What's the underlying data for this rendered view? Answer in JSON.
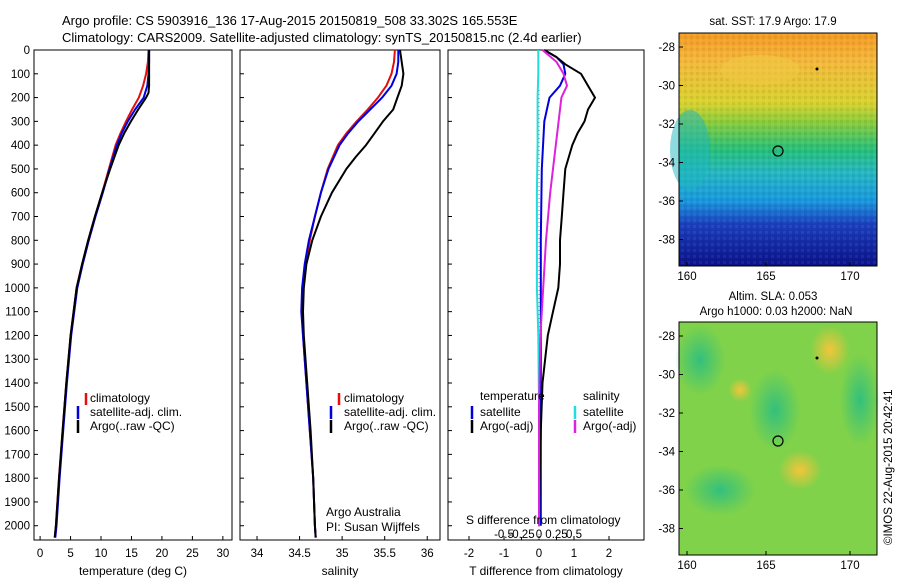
{
  "header": {
    "line1": "Argo profile: CS 5903916_136 17-Aug-2015 20150819_508 33.302S 165.553E",
    "line2": "Climatology: CARS2009. Satellite-adjusted climatology: synTS_20150815.nc (2.4d earlier)"
  },
  "colors": {
    "climatology": "#e01010",
    "satellite": "#0000dd",
    "argo": "#000000",
    "sal_satellite": "#22dddd",
    "sal_argo": "#dd22dd"
  },
  "chart_data": [
    {
      "type": "line",
      "xlabel": "temperature (deg C)",
      "ylabel": "",
      "xlim": [
        -1,
        31.5
      ],
      "ylim": [
        2060,
        0
      ],
      "x_ticks": [
        0,
        5,
        10,
        15,
        20,
        25,
        30
      ],
      "y_ticks": [
        0,
        100,
        200,
        300,
        400,
        500,
        600,
        700,
        800,
        900,
        1000,
        1100,
        1200,
        1300,
        1400,
        1500,
        1600,
        1700,
        1800,
        1900,
        2000
      ],
      "series": [
        {
          "name": "climatology",
          "color": "#e01010",
          "depth": [
            0,
            50,
            100,
            150,
            200,
            250,
            300,
            350,
            400,
            500,
            600,
            700,
            800,
            900,
            1000,
            1200,
            1400,
            1600,
            1800,
            2000,
            2050
          ],
          "values": [
            17.8,
            17.7,
            17.4,
            16.9,
            16.2,
            15.1,
            14.1,
            13.2,
            12.4,
            11.3,
            10.2,
            9.0,
            7.9,
            6.9,
            6.0,
            5.0,
            4.3,
            3.7,
            3.1,
            2.6,
            2.4
          ]
        },
        {
          "name": "satellite-adj. clim.",
          "color": "#0000dd",
          "depth": [
            0,
            50,
            100,
            150,
            200,
            250,
            300,
            350,
            400,
            500,
            600,
            700,
            800,
            900,
            1000,
            1200,
            1400,
            1600,
            1800,
            2000,
            2050
          ],
          "values": [
            17.9,
            17.9,
            17.8,
            17.6,
            17.0,
            15.6,
            14.4,
            13.4,
            12.6,
            11.4,
            10.3,
            9.1,
            8.0,
            7.0,
            6.1,
            5.1,
            4.4,
            3.8,
            3.2,
            2.7,
            2.5
          ]
        },
        {
          "name": "Argo(..raw -QC)",
          "color": "#000000",
          "depth": [
            0,
            50,
            100,
            150,
            180,
            200,
            250,
            300,
            350,
            400,
            500,
            600,
            700,
            800,
            900,
            1000,
            1200,
            1400,
            1600,
            1800,
            2000,
            2050
          ],
          "values": [
            17.9,
            17.9,
            17.9,
            17.9,
            17.8,
            17.4,
            16.1,
            14.9,
            13.8,
            12.9,
            11.5,
            10.2,
            9.0,
            7.9,
            6.9,
            6.0,
            5.0,
            4.3,
            3.7,
            3.1,
            2.6,
            2.4
          ]
        }
      ]
    },
    {
      "type": "line",
      "xlabel": "salinity",
      "xlim": [
        33.8,
        36.15
      ],
      "ylim": [
        2060,
        0
      ],
      "x_ticks": [
        34,
        34.5,
        35,
        35.5,
        36
      ],
      "x_tick_labels": [
        "34",
        "34.5",
        "35",
        "35.5",
        "36"
      ],
      "series": [
        {
          "name": "climatology",
          "color": "#e01010",
          "depth": [
            0,
            50,
            100,
            150,
            200,
            250,
            300,
            350,
            400,
            500,
            600,
            700,
            800,
            900,
            1000,
            1100,
            1200,
            1400,
            1600,
            1800,
            2000,
            2050
          ],
          "values": [
            35.62,
            35.61,
            35.58,
            35.52,
            35.42,
            35.3,
            35.17,
            35.05,
            34.95,
            34.83,
            34.75,
            34.68,
            34.62,
            34.57,
            34.54,
            34.53,
            34.54,
            34.58,
            34.62,
            34.66,
            34.68,
            34.69
          ]
        },
        {
          "name": "satellite-adj. clim.",
          "color": "#0000dd",
          "depth": [
            0,
            50,
            100,
            150,
            200,
            250,
            300,
            350,
            400,
            500,
            600,
            700,
            800,
            900,
            1000,
            1100,
            1200,
            1400,
            1600,
            1800,
            2000,
            2050
          ],
          "values": [
            35.66,
            35.66,
            35.64,
            35.58,
            35.47,
            35.33,
            35.19,
            35.07,
            34.97,
            34.84,
            34.75,
            34.68,
            34.61,
            34.56,
            34.53,
            34.52,
            34.54,
            34.58,
            34.62,
            34.66,
            34.68,
            34.69
          ]
        },
        {
          "name": "Argo(..raw -QC)",
          "color": "#000000",
          "depth": [
            0,
            50,
            100,
            150,
            200,
            250,
            300,
            350,
            400,
            450,
            500,
            600,
            700,
            800,
            900,
            1000,
            1100,
            1200,
            1400,
            1600,
            1800,
            2000,
            2050
          ],
          "values": [
            35.68,
            35.7,
            35.72,
            35.7,
            35.65,
            35.6,
            35.48,
            35.38,
            35.28,
            35.16,
            35.05,
            34.88,
            34.75,
            34.65,
            34.58,
            34.55,
            34.54,
            34.55,
            34.59,
            34.63,
            34.66,
            34.68,
            34.69
          ]
        }
      ],
      "annotations": [
        "Argo Australia",
        "PI: Susan Wijffels"
      ]
    },
    {
      "type": "line",
      "xlabel": "T difference from climatology",
      "title": "S difference from climatology",
      "xlim": [
        -2.6,
        3.0
      ],
      "ylim": [
        2060,
        0
      ],
      "x_ticks": [
        -2,
        -1,
        0,
        1,
        2
      ],
      "x_tick_labels": [
        "-2",
        "-1",
        "0",
        "1",
        "2"
      ],
      "s_ticks": [
        -0.5,
        -0.25,
        0,
        0.25,
        0.5
      ],
      "s_tick_labels": [
        "-0.5",
        "-0.25",
        "0",
        "0.25",
        "0.5"
      ],
      "series": [
        {
          "name": "satellite",
          "group": "temperature",
          "color": "#0000dd",
          "depth": [
            0,
            30,
            60,
            100,
            150,
            200,
            300,
            500,
            800,
            1000,
            1200,
            1500,
            2000
          ],
          "values": [
            0.15,
            0.5,
            0.7,
            0.75,
            0.6,
            0.3,
            0.15,
            0.08,
            0.05,
            0.05,
            0.05,
            0.05,
            0.05
          ]
        },
        {
          "name": "Argo(-adj)",
          "group": "temperature",
          "color": "#000000",
          "depth": [
            0,
            30,
            60,
            100,
            150,
            200,
            250,
            300,
            350,
            400,
            500,
            600,
            700,
            800,
            900,
            1000,
            1100,
            1200,
            1400,
            1600,
            1800,
            2000
          ],
          "values": [
            0.15,
            0.5,
            0.75,
            1.2,
            1.4,
            1.6,
            1.4,
            1.3,
            1.1,
            0.95,
            0.75,
            0.7,
            0.65,
            0.6,
            0.6,
            0.55,
            0.4,
            0.25,
            0.1,
            0.05,
            0.02,
            0.0
          ]
        },
        {
          "name": "satellite",
          "group": "salinity",
          "color": "#22dddd",
          "depth": [
            0,
            100,
            200,
            400,
            600,
            800,
            1000,
            1200,
            1500,
            1800,
            2000
          ],
          "values": [
            -0.01,
            -0.01,
            -0.02,
            -0.02,
            -0.03,
            -0.03,
            -0.03,
            -0.01,
            0.0,
            0.0,
            0.0
          ]
        },
        {
          "name": "Argo(-adj)",
          "group": "salinity",
          "color": "#dd22dd",
          "depth": [
            0,
            50,
            100,
            150,
            200,
            300,
            400,
            500,
            600,
            800,
            1000,
            1200,
            1500,
            2000
          ],
          "values": [
            0.05,
            0.25,
            0.35,
            0.4,
            0.32,
            0.28,
            0.24,
            0.2,
            0.16,
            0.1,
            0.06,
            0.02,
            0.0,
            0.0
          ]
        }
      ],
      "legend": {
        "temperature": "temperature",
        "salinity": "salinity"
      }
    }
  ],
  "maps": [
    {
      "title": "sat. SST: 17.9 Argo: 17.9",
      "x_ticks": [
        "160",
        "165",
        "170"
      ],
      "y_ticks": [
        "-28",
        "-30",
        "-32",
        "-34",
        "-36",
        "-38"
      ]
    },
    {
      "title1": "Altim. SLA: 0.053",
      "title2": "Argo h1000: 0.03 h2000: NaN",
      "x_ticks": [
        "160",
        "165",
        "170"
      ],
      "y_ticks": [
        "-28",
        "-30",
        "-32",
        "-34",
        "-36",
        "-38"
      ]
    }
  ],
  "watermark": "©IMOS 22-Aug-2015 20:42:41"
}
